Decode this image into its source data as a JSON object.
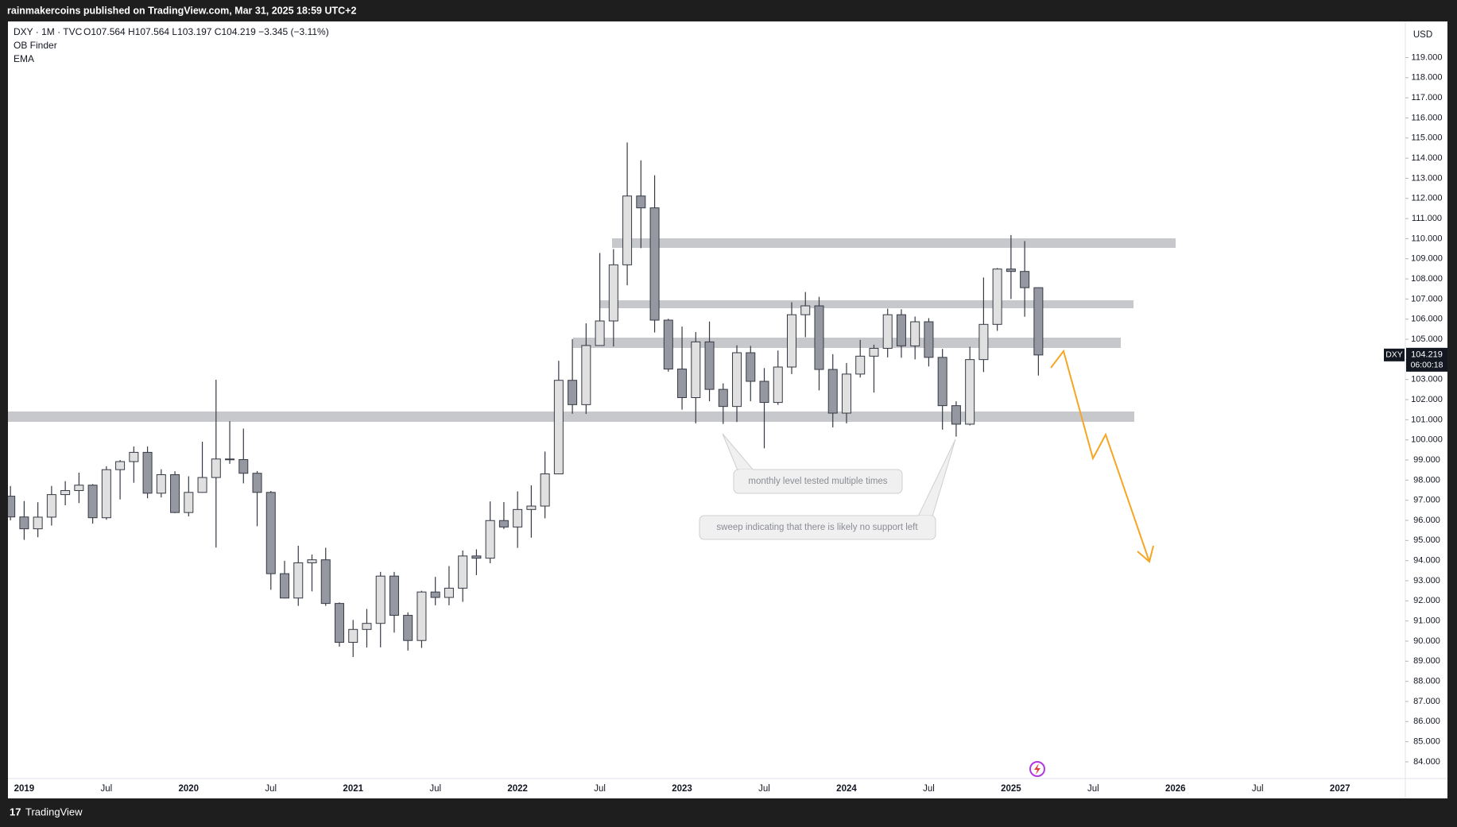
{
  "header": "rainmakercoins published on TradingView.com, Mar 31, 2025 18:59 UTC+2",
  "footer": "TradingView",
  "chart_data": {
    "type": "candlestick",
    "legend_title": "DXY · 1M · TVC",
    "legend_values": "O107.564 H107.564 L103.197 C104.219 −3.345 (−3.11%)",
    "indicators": [
      "OB Finder",
      "EMA"
    ],
    "currency": "USD",
    "symbol": "DXY",
    "countdown": "06:00:18",
    "annotations": [
      "monthly level tested multiple times",
      "sweep indicating that there is likely no support left"
    ],
    "categories": [
      null,
      "2019",
      null,
      null,
      null,
      null,
      null,
      "Jul",
      null,
      null,
      null,
      null,
      null,
      "2020",
      null,
      null,
      null,
      null,
      null,
      "Jul",
      null,
      null,
      null,
      null,
      null,
      "2021",
      null,
      null,
      null,
      null,
      null,
      "Jul",
      null,
      null,
      null,
      null,
      null,
      "2022",
      null,
      null,
      null,
      null,
      null,
      "Jul",
      null,
      null,
      null,
      null,
      null,
      "2023",
      null,
      null,
      null,
      null,
      null,
      "Jul",
      null,
      null,
      null,
      null,
      null,
      "2024",
      null,
      null,
      null,
      null,
      null,
      "Jul",
      null,
      null,
      null,
      null,
      null,
      "2025",
      null,
      null,
      null,
      null,
      null,
      "Jul",
      null,
      null,
      null,
      null,
      null,
      "2026",
      null,
      null,
      null,
      null,
      null,
      "Jul",
      null,
      null,
      null,
      null,
      null,
      "2027",
      null,
      null,
      null,
      null
    ],
    "open": [
      97.2,
      96.17,
      95.58,
      96.16,
      97.28,
      97.48,
      97.75,
      96.13,
      98.52,
      98.92,
      99.38,
      97.35,
      98.27,
      96.39,
      97.39,
      98.13,
      99.05,
      99.02,
      98.34,
      97.39,
      93.35,
      92.14,
      93.89,
      94.04,
      91.87,
      89.94,
      90.58,
      90.88,
      93.23,
      91.28,
      90.03,
      92.44,
      92.17,
      92.63,
      94.23,
      94.12,
      95.99,
      95.67,
      96.54,
      96.71,
      98.31,
      102.96,
      101.75,
      104.69,
      105.91,
      108.7,
      112.12,
      111.53,
      105.95,
      103.52,
      102.1,
      104.87,
      102.51,
      101.66,
      104.33,
      102.91,
      101.86,
      103.62,
      106.22,
      106.66,
      103.5,
      101.33,
      103.27,
      104.16,
      104.55,
      106.22,
      104.67,
      105.87,
      104.1,
      101.7,
      100.78,
      103.99,
      105.74,
      108.49,
      108.37,
      107.564,
      null,
      null,
      null,
      null,
      null,
      null,
      null,
      null,
      null,
      null,
      null,
      null,
      null,
      null,
      null,
      null,
      null,
      null,
      null,
      null,
      null,
      null,
      null,
      null,
      null,
      null
    ],
    "high": [
      97.71,
      96.96,
      96.9,
      97.71,
      97.95,
      98.37,
      97.8,
      98.69,
      99.0,
      99.67,
      99.67,
      98.54,
      98.44,
      98.19,
      99.91,
      102.99,
      100.93,
      100.56,
      98.45,
      97.46,
      93.99,
      94.74,
      94.3,
      94.64,
      91.92,
      91.05,
      91.6,
      93.44,
      93.44,
      91.43,
      92.5,
      93.19,
      93.73,
      94.5,
      94.56,
      96.94,
      96.91,
      97.44,
      97.74,
      99.42,
      103.93,
      105.01,
      105.79,
      109.29,
      109.48,
      114.78,
      113.89,
      113.15,
      106.02,
      105.63,
      105.36,
      105.88,
      102.81,
      104.7,
      104.67,
      103.57,
      104.44,
      106.84,
      107.35,
      107.11,
      104.26,
      103.82,
      104.97,
      104.73,
      106.52,
      106.49,
      106.13,
      106.05,
      104.52,
      101.92,
      104.63,
      108.07,
      108.54,
      110.18,
      109.88,
      107.564,
      null,
      null,
      null,
      null,
      null,
      null,
      null,
      null,
      null,
      null,
      null,
      null,
      null,
      null,
      null,
      null,
      null,
      null,
      null,
      null,
      null,
      null,
      null,
      null,
      null,
      null
    ],
    "low": [
      96.0,
      95.03,
      95.16,
      95.74,
      96.75,
      96.86,
      95.84,
      96.03,
      97.04,
      97.87,
      97.1,
      97.14,
      96.36,
      96.2,
      97.37,
      94.65,
      98.81,
      97.84,
      95.71,
      92.55,
      92.12,
      91.75,
      92.47,
      91.75,
      89.72,
      89.21,
      89.68,
      89.69,
      90.42,
      89.53,
      89.66,
      91.78,
      91.78,
      91.95,
      93.28,
      93.87,
      95.57,
      94.63,
      95.14,
      96.1,
      98.29,
      101.3,
      101.29,
      104.69,
      104.64,
      107.68,
      109.53,
      105.34,
      103.39,
      101.5,
      100.82,
      101.92,
      100.79,
      100.89,
      101.92,
      99.58,
      101.74,
      103.27,
      105.1,
      102.46,
      100.62,
      100.82,
      103.1,
      102.35,
      104.1,
      104.08,
      104.0,
      103.65,
      100.51,
      100.16,
      100.72,
      103.37,
      105.42,
      107.0,
      106.12,
      103.197,
      null,
      null,
      null,
      null,
      null,
      null,
      null,
      null,
      null,
      null,
      null,
      null,
      null,
      null,
      null,
      null,
      null,
      null,
      null,
      null,
      null,
      null,
      null,
      null,
      null,
      null
    ],
    "close": [
      96.17,
      95.58,
      96.16,
      97.28,
      97.48,
      97.75,
      96.13,
      98.52,
      98.92,
      99.38,
      97.35,
      98.27,
      96.39,
      97.39,
      98.13,
      99.05,
      99.02,
      98.34,
      97.39,
      93.35,
      92.14,
      93.89,
      94.04,
      91.87,
      89.94,
      90.58,
      90.88,
      93.23,
      91.28,
      90.03,
      92.44,
      92.17,
      92.63,
      94.23,
      94.12,
      95.99,
      95.67,
      96.54,
      96.71,
      98.31,
      102.96,
      101.75,
      104.69,
      105.91,
      108.7,
      112.12,
      111.53,
      105.95,
      103.52,
      102.1,
      104.87,
      102.51,
      101.66,
      104.33,
      102.91,
      101.86,
      103.62,
      106.22,
      106.66,
      103.5,
      101.33,
      103.27,
      104.16,
      104.55,
      106.22,
      104.67,
      105.87,
      104.1,
      101.7,
      100.78,
      103.99,
      105.74,
      108.49,
      108.37,
      107.564,
      104.219,
      null,
      null,
      null,
      null,
      null,
      null,
      null,
      null,
      null,
      null,
      null,
      null,
      null,
      null,
      null,
      null,
      null,
      null,
      null,
      null,
      null,
      null,
      null,
      null,
      null,
      null
    ],
    "up_color": "#e0e0e0",
    "down_color": "#9598a1",
    "border_color": "#363a45",
    "ylim": [
      83.169,
      120.755
    ],
    "yticks": [
      {
        "value": 84,
        "label": "84.000"
      },
      {
        "value": 85,
        "label": "85.000"
      },
      {
        "value": 86,
        "label": "86.000"
      },
      {
        "value": 87,
        "label": "87.000"
      },
      {
        "value": 88,
        "label": "88.000"
      },
      {
        "value": 89,
        "label": "89.000"
      },
      {
        "value": 90,
        "label": "90.000"
      },
      {
        "value": 91,
        "label": "91.000"
      },
      {
        "value": 92,
        "label": "92.000"
      },
      {
        "value": 93,
        "label": "93.000"
      },
      {
        "value": 94,
        "label": "94.000"
      },
      {
        "value": 95,
        "label": "95.000"
      },
      {
        "value": 96,
        "label": "96.000"
      },
      {
        "value": 97,
        "label": "97.000"
      },
      {
        "value": 98,
        "label": "98.000"
      },
      {
        "value": 99,
        "label": "99.000"
      },
      {
        "value": 100,
        "label": "100.000"
      },
      {
        "value": 101,
        "label": "101.000"
      },
      {
        "value": 102,
        "label": "102.000"
      },
      {
        "value": 103,
        "label": "103.000"
      },
      {
        "value": 104,
        "label": "104.000"
      },
      {
        "value": 105,
        "label": "105.000"
      },
      {
        "value": 106,
        "label": "106.000"
      },
      {
        "value": 107,
        "label": "107.000"
      },
      {
        "value": 108,
        "label": "108.000"
      },
      {
        "value": 109,
        "label": "109.000"
      },
      {
        "value": 110,
        "label": "110.000"
      },
      {
        "value": 111,
        "label": "111.000"
      },
      {
        "value": 112,
        "label": "112.000"
      },
      {
        "value": 113,
        "label": "113.000"
      },
      {
        "value": 114,
        "label": "114.000"
      },
      {
        "value": 115,
        "label": "115.000"
      },
      {
        "value": 116,
        "label": "116.000"
      },
      {
        "value": 117,
        "label": "117.000"
      },
      {
        "value": 118,
        "label": "118.000"
      },
      {
        "value": 119,
        "label": "119.000"
      }
    ],
    "grid": false
  }
}
